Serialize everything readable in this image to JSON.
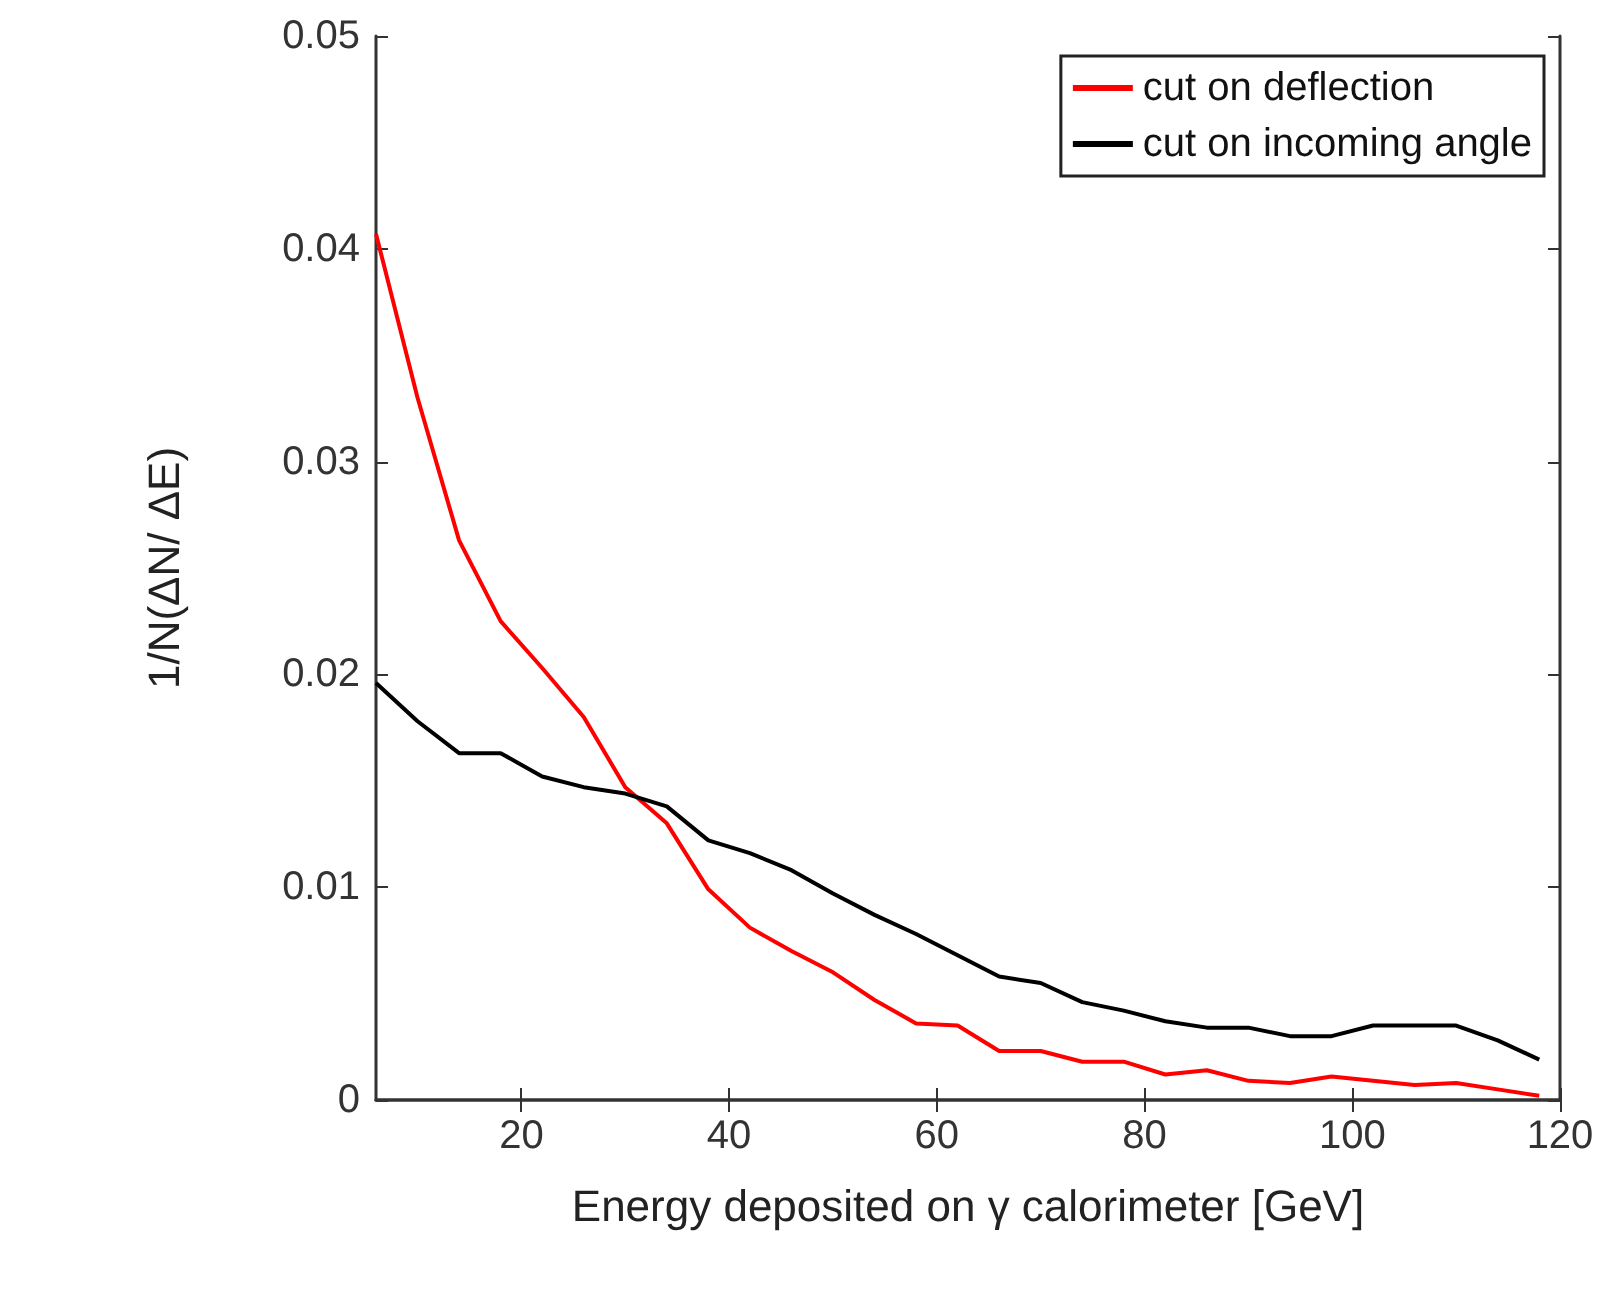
{
  "chart_data": {
    "type": "line",
    "xlabel": "Energy deposited on γ calorimeter [GeV]",
    "ylabel": "1/N(ΔN/ ΔE)",
    "x": [
      6,
      10,
      14,
      18,
      22,
      26,
      30,
      34,
      38,
      42,
      46,
      50,
      54,
      58,
      62,
      66,
      70,
      74,
      78,
      82,
      86,
      90,
      94,
      98,
      102,
      106,
      110,
      114,
      118
    ],
    "series": [
      {
        "name": "cut on deflection",
        "color": "#ff0000",
        "values": [
          0.0407,
          0.033,
          0.0263,
          0.0225,
          0.0203,
          0.018,
          0.0147,
          0.013,
          0.0099,
          0.0081,
          0.007,
          0.006,
          0.0047,
          0.0036,
          0.0035,
          0.0023,
          0.0023,
          0.0018,
          0.0018,
          0.0012,
          0.0014,
          0.0009,
          0.0008,
          0.0011,
          0.0009,
          0.0007,
          0.0008,
          0.0005,
          0.0002
        ]
      },
      {
        "name": "cut on incoming angle",
        "color": "#000000",
        "values": [
          0.0196,
          0.0178,
          0.0163,
          0.0163,
          0.0152,
          0.0147,
          0.0144,
          0.0138,
          0.0122,
          0.0116,
          0.0108,
          0.0097,
          0.0087,
          0.0078,
          0.0068,
          0.0058,
          0.0055,
          0.0046,
          0.0042,
          0.0037,
          0.0034,
          0.0034,
          0.003,
          0.003,
          0.0035,
          0.0035,
          0.0035,
          0.0028,
          0.0019
        ]
      }
    ],
    "xlim": [
      6,
      120
    ],
    "xticks": [
      20,
      40,
      60,
      80,
      100,
      120
    ],
    "ylim": [
      0,
      0.05
    ],
    "yticks": [
      0,
      0.01,
      0.02,
      0.03,
      0.04,
      0.05
    ],
    "grid": false,
    "legend": "top right",
    "marker": "none",
    "line_style": "solid"
  }
}
